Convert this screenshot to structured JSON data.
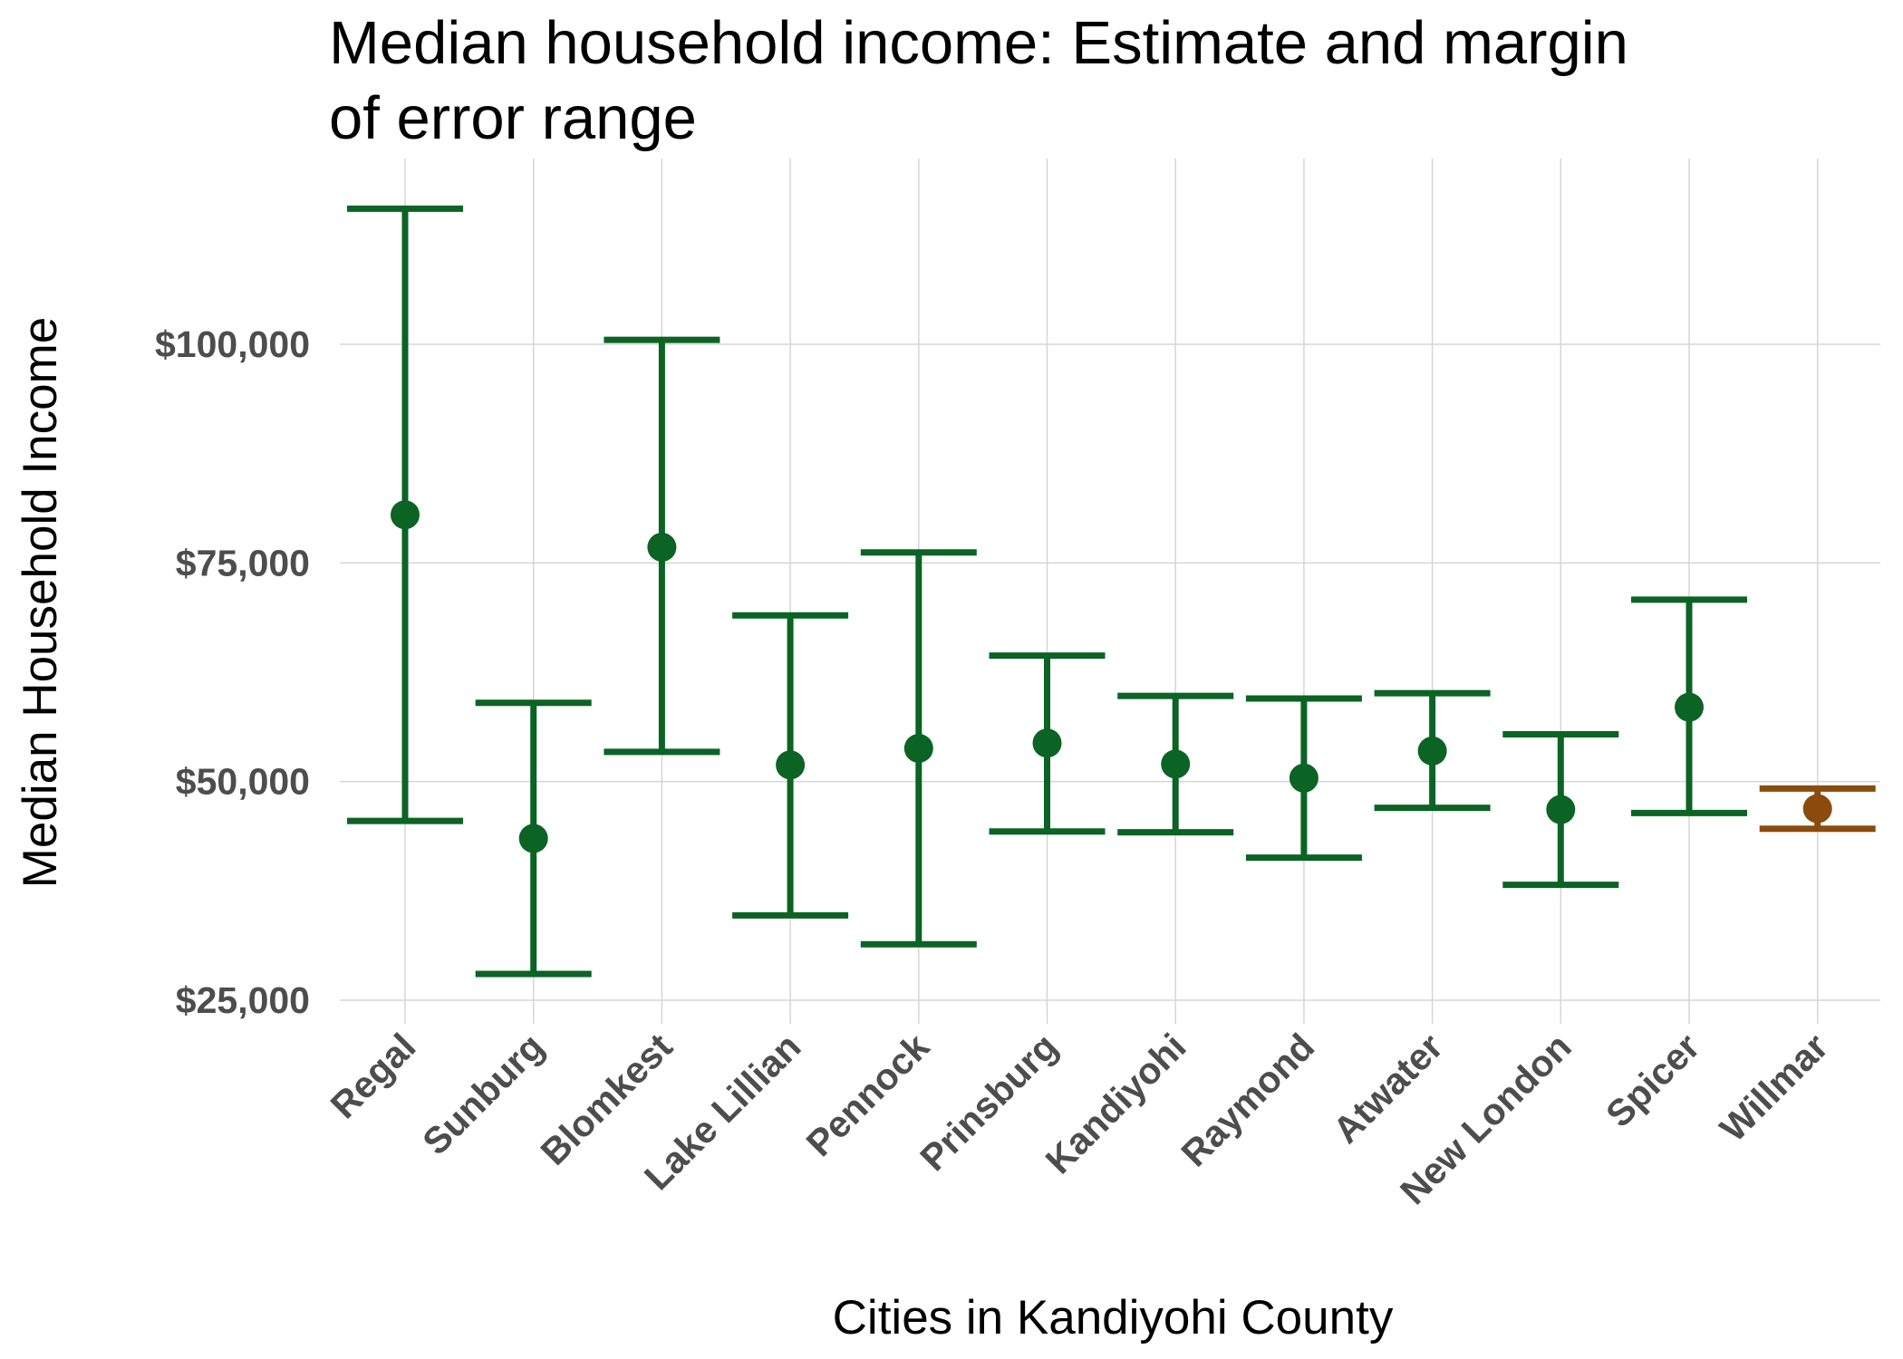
{
  "chart_data": {
    "type": "errorbar",
    "title": "Median household income: Estimate and margin of error range",
    "xlabel": "Cities in Kandiyohi County",
    "ylabel": "Median Household Income",
    "ylim": [
      22000,
      118000
    ],
    "yticks": [
      25000,
      50000,
      75000,
      100000
    ],
    "ytick_labels": [
      "$25,000",
      "$50,000",
      "$75,000",
      "$100,000"
    ],
    "grid": true,
    "legend": "none",
    "colors": {
      "default": "#0b6324",
      "highlight": "#8b4b0c"
    },
    "points": [
      {
        "city": "Regal",
        "estimate": 80500,
        "low": 45500,
        "high": 115500,
        "highlight": false
      },
      {
        "city": "Sunburg",
        "estimate": 43500,
        "low": 28000,
        "high": 59000,
        "highlight": false
      },
      {
        "city": "Blomkest",
        "estimate": 76800,
        "low": 53400,
        "high": 100500,
        "highlight": false
      },
      {
        "city": "Lake Lillian",
        "estimate": 51900,
        "low": 34700,
        "high": 69000,
        "highlight": false
      },
      {
        "city": "Pennock",
        "estimate": 53800,
        "low": 31400,
        "high": 76200,
        "highlight": false
      },
      {
        "city": "Prinsburg",
        "estimate": 54400,
        "low": 44300,
        "high": 64400,
        "highlight": false
      },
      {
        "city": "Kandiyohi",
        "estimate": 52000,
        "low": 44200,
        "high": 59800,
        "highlight": false
      },
      {
        "city": "Raymond",
        "estimate": 50400,
        "low": 41300,
        "high": 59500,
        "highlight": false
      },
      {
        "city": "Atwater",
        "estimate": 53500,
        "low": 47000,
        "high": 60100,
        "highlight": false
      },
      {
        "city": "New London",
        "estimate": 46800,
        "low": 38200,
        "high": 55400,
        "highlight": false
      },
      {
        "city": "Spicer",
        "estimate": 58500,
        "low": 46400,
        "high": 70800,
        "highlight": false
      },
      {
        "city": "Willmar",
        "estimate": 46900,
        "low": 44600,
        "high": 49200,
        "highlight": true
      }
    ]
  }
}
